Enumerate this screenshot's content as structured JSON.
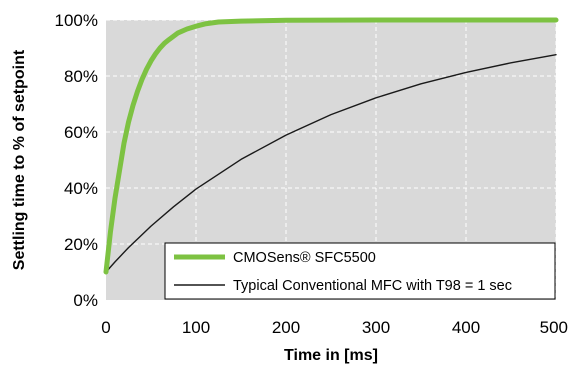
{
  "chart_data": {
    "type": "line",
    "xlabel": "Time in [ms]",
    "ylabel": "Settling time to % of setpoint",
    "xlim": [
      0,
      500
    ],
    "ylim": [
      0,
      100
    ],
    "x_ticks": [
      0,
      100,
      200,
      300,
      400,
      500
    ],
    "y_ticks": [
      0,
      20,
      40,
      60,
      80,
      100
    ],
    "x_tick_labels": [
      "0",
      "100",
      "200",
      "300",
      "400",
      "500"
    ],
    "y_tick_labels": [
      "0%",
      "20%",
      "40%",
      "60%",
      "80%",
      "100%"
    ],
    "grid": true,
    "legend_position": "bottom-right",
    "plot_background": "#d9d9d9",
    "series": [
      {
        "name": "CMOSens® SFC5500",
        "color": "#7dc242",
        "line_style": "thick",
        "x": [
          0,
          5,
          10,
          15,
          20,
          25,
          30,
          35,
          40,
          45,
          50,
          55,
          60,
          65,
          70,
          80,
          90,
          100,
          110,
          125,
          150,
          200,
          300,
          400,
          500
        ],
        "y": [
          10,
          24.5,
          36.4,
          46.2,
          56.0,
          63.5,
          69.5,
          74.5,
          78.8,
          82.4,
          85.4,
          87.9,
          90.0,
          91.7,
          93.0,
          95.4,
          96.8,
          97.8,
          98.6,
          99.3,
          99.6,
          99.9,
          100,
          100,
          100
        ]
      },
      {
        "name": "Typical Conventional MFC with T98 = 1 sec",
        "color": "#1a1a1a",
        "line_style": "thin",
        "x": [
          0,
          10,
          25,
          50,
          75,
          100,
          150,
          200,
          250,
          300,
          350,
          400,
          450,
          500
        ],
        "y": [
          10,
          13.6,
          18.7,
          26.4,
          33.3,
          39.6,
          50.2,
          58.9,
          66.2,
          72.2,
          77.2,
          81.3,
          84.7,
          87.6
        ]
      }
    ]
  }
}
